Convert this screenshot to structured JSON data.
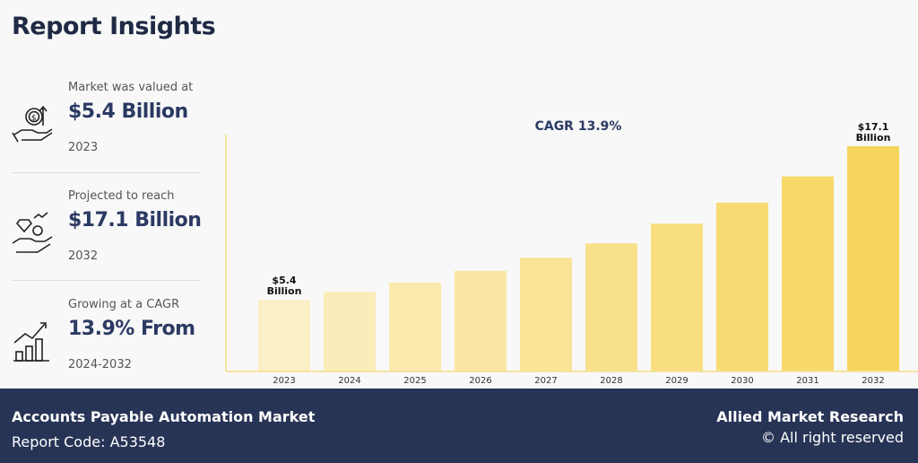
{
  "header": {
    "title": "Report Insights"
  },
  "stats": [
    {
      "label": "Market was valued at",
      "value": "$5.4 Billion",
      "sub": "2023",
      "icon": "hand-coin-arrow-icon"
    },
    {
      "label": "Projected to reach",
      "value": "$17.1 Billion",
      "sub": "2032",
      "icon": "hand-diamond-coin-icon"
    },
    {
      "label": "Growing at a CAGR",
      "value": "13.9% From",
      "sub": "2024-2032",
      "icon": "growth-chart-icon"
    }
  ],
  "chart_data": {
    "type": "bar",
    "title": "CAGR 13.9%",
    "categories": [
      "2023",
      "2024",
      "2025",
      "2026",
      "2027",
      "2028",
      "2029",
      "2030",
      "2031",
      "2032"
    ],
    "values": [
      5.4,
      6.0,
      6.7,
      7.6,
      8.6,
      9.7,
      11.2,
      12.8,
      14.8,
      17.1
    ],
    "data_labels": {
      "0": [
        "$5.4",
        "Billion"
      ],
      "9": [
        "$17.1",
        "Billion"
      ]
    },
    "xlabel": "",
    "ylabel": "",
    "ylim": [
      0,
      17.1
    ],
    "grid": false,
    "colors": {
      "start": "#fcefc5",
      "end": "#f6d55c",
      "axis": "#f7e3a0"
    }
  },
  "footer": {
    "market": "Accounts Payable Automation Market",
    "report_code": "Report Code: A53548",
    "brand": "Allied Market Research",
    "rights": "© All right reserved"
  }
}
